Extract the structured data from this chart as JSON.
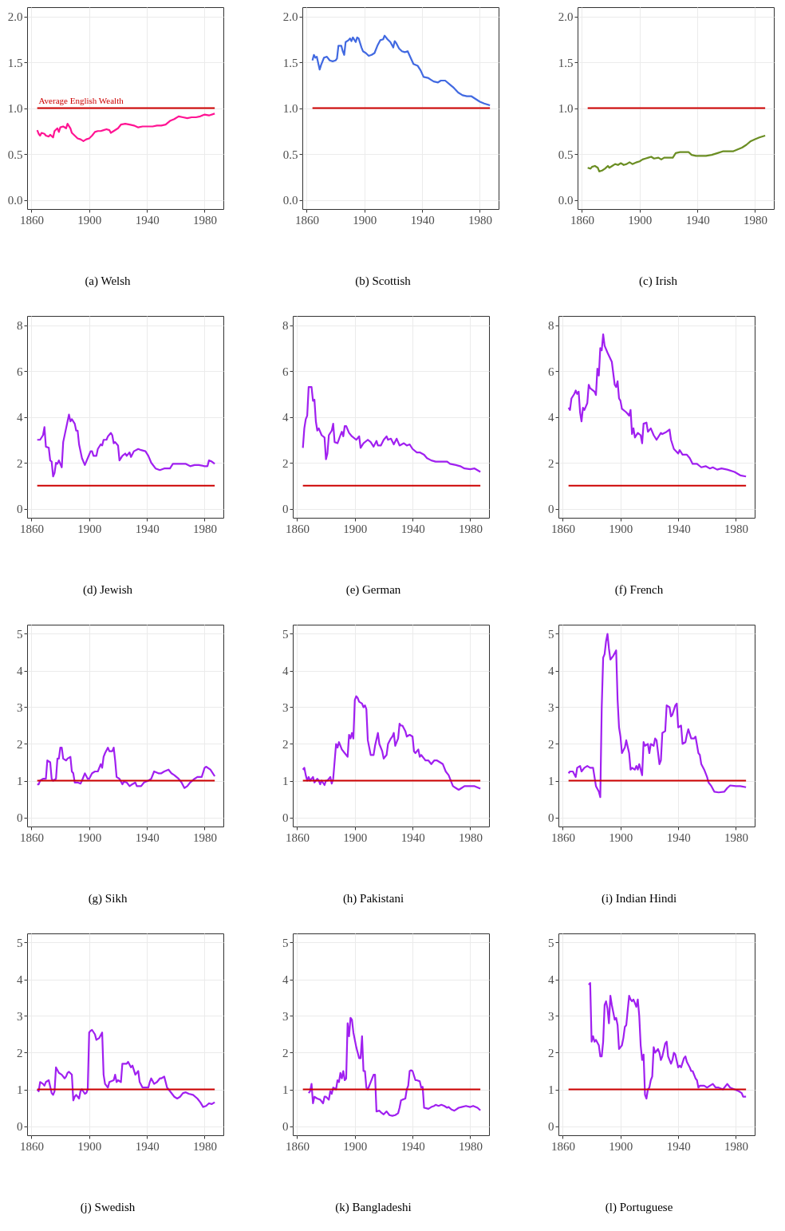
{
  "chart_data": [
    {
      "type": "line",
      "title": "(a) Welsh",
      "xlim": [
        1857,
        1993
      ],
      "xticks": [
        1860,
        1900,
        1940,
        1980
      ],
      "ylim": [
        -0.1,
        2.1
      ],
      "yticks": [
        {
          "value": 0,
          "label": "0.0"
        },
        0.5,
        {
          "value": 1,
          "label": "1.0"
        },
        1.5,
        {
          "value": 2,
          "label": "2.0"
        }
      ],
      "grid": true,
      "annotations": [
        {
          "text": "Average English Wealth",
          "x": 1865,
          "y": 1
        }
      ],
      "series": [
        {
          "color": "#ff1493",
          "x": [
            1864,
            1865,
            1866,
            1867,
            1869,
            1870,
            1872,
            1873,
            1875,
            1876,
            1878,
            1879,
            1880,
            1882,
            1884,
            1885,
            1887,
            1888,
            1890,
            1892,
            1894,
            1896,
            1898,
            1900,
            1902,
            1904,
            1906,
            1908,
            1910,
            1912,
            1914,
            1915,
            1917,
            1920,
            1922,
            1925,
            1928,
            1931,
            1934,
            1937,
            1940,
            1944,
            1947,
            1950,
            1953,
            1956,
            1959,
            1962,
            1965,
            1968,
            1971,
            1974,
            1977,
            1980,
            1983,
            1987
          ],
          "values": [
            0.76,
            0.72,
            0.7,
            0.73,
            0.72,
            0.7,
            0.69,
            0.71,
            0.68,
            0.75,
            0.78,
            0.74,
            0.79,
            0.8,
            0.78,
            0.83,
            0.78,
            0.73,
            0.7,
            0.67,
            0.66,
            0.64,
            0.66,
            0.67,
            0.7,
            0.74,
            0.75,
            0.75,
            0.76,
            0.77,
            0.76,
            0.73,
            0.75,
            0.78,
            0.82,
            0.83,
            0.82,
            0.81,
            0.79,
            0.8,
            0.8,
            0.8,
            0.81,
            0.81,
            0.82,
            0.86,
            0.88,
            0.91,
            0.9,
            0.89,
            0.9,
            0.9,
            0.91,
            0.93,
            0.92,
            0.94
          ]
        },
        {
          "type": "line",
          "color": "#cd0000",
          "x": [
            1864,
            1987
          ],
          "values": [
            1,
            1
          ]
        }
      ]
    },
    {
      "type": "line",
      "title": "(b) Scottish",
      "xlim": [
        1857,
        1993
      ],
      "xticks": [
        1860,
        1900,
        1940,
        1980
      ],
      "ylim": [
        -0.1,
        2.1
      ],
      "yticks": [
        {
          "value": 0,
          "label": "0.0"
        },
        0.5,
        {
          "value": 1,
          "label": "1.0"
        },
        1.5,
        {
          "value": 2,
          "label": "2.0"
        }
      ],
      "grid": true,
      "series": [
        {
          "color": "#4169e1",
          "x": [
            1864,
            1865,
            1866,
            1867,
            1869,
            1870,
            1872,
            1874,
            1876,
            1878,
            1880,
            1881,
            1882,
            1884,
            1885,
            1886,
            1887,
            1889,
            1890,
            1891,
            1892,
            1894,
            1895,
            1896,
            1898,
            1899,
            1901,
            1903,
            1905,
            1907,
            1909,
            1911,
            1913,
            1914,
            1916,
            1918,
            1920,
            1921,
            1922,
            1924,
            1926,
            1928,
            1930,
            1932,
            1934,
            1937,
            1939,
            1941,
            1944,
            1946,
            1948,
            1951,
            1953,
            1956,
            1959,
            1962,
            1965,
            1968,
            1971,
            1974,
            1977,
            1980,
            1983,
            1987
          ],
          "values": [
            1.52,
            1.58,
            1.55,
            1.56,
            1.42,
            1.47,
            1.55,
            1.56,
            1.52,
            1.51,
            1.52,
            1.54,
            1.68,
            1.68,
            1.62,
            1.58,
            1.72,
            1.74,
            1.76,
            1.73,
            1.77,
            1.72,
            1.77,
            1.76,
            1.66,
            1.62,
            1.6,
            1.57,
            1.58,
            1.6,
            1.68,
            1.74,
            1.75,
            1.79,
            1.75,
            1.72,
            1.66,
            1.73,
            1.71,
            1.65,
            1.62,
            1.61,
            1.62,
            1.55,
            1.48,
            1.46,
            1.41,
            1.34,
            1.33,
            1.31,
            1.29,
            1.28,
            1.3,
            1.3,
            1.26,
            1.22,
            1.17,
            1.14,
            1.13,
            1.13,
            1.1,
            1.07,
            1.05,
            1.03
          ]
        },
        {
          "type": "line",
          "color": "#cd0000",
          "x": [
            1864,
            1987
          ],
          "values": [
            1,
            1
          ]
        }
      ]
    },
    {
      "type": "line",
      "title": "(c) Irish",
      "xlim": [
        1857,
        1993
      ],
      "xticks": [
        1860,
        1900,
        1940,
        1980
      ],
      "ylim": [
        -0.1,
        2.1
      ],
      "yticks": [
        {
          "value": 0,
          "label": "0.0"
        },
        0.5,
        {
          "value": 1,
          "label": "1.0"
        },
        1.5,
        {
          "value": 2,
          "label": "2.0"
        }
      ],
      "grid": true,
      "series": [
        {
          "color": "#6b8e23",
          "x": [
            1864,
            1866,
            1867,
            1869,
            1871,
            1872,
            1874,
            1876,
            1878,
            1879,
            1881,
            1883,
            1885,
            1887,
            1889,
            1891,
            1893,
            1895,
            1898,
            1900,
            1902,
            1904,
            1906,
            1908,
            1910,
            1913,
            1915,
            1917,
            1920,
            1923,
            1925,
            1928,
            1931,
            1934,
            1936,
            1939,
            1942,
            1946,
            1950,
            1954,
            1958,
            1962,
            1965,
            1968,
            1971,
            1974,
            1977,
            1980,
            1983,
            1987
          ],
          "values": [
            0.35,
            0.34,
            0.36,
            0.37,
            0.35,
            0.31,
            0.32,
            0.34,
            0.37,
            0.35,
            0.37,
            0.39,
            0.38,
            0.4,
            0.38,
            0.39,
            0.41,
            0.39,
            0.41,
            0.42,
            0.44,
            0.45,
            0.46,
            0.47,
            0.45,
            0.46,
            0.44,
            0.46,
            0.46,
            0.46,
            0.51,
            0.52,
            0.52,
            0.52,
            0.49,
            0.48,
            0.48,
            0.48,
            0.49,
            0.51,
            0.53,
            0.53,
            0.53,
            0.55,
            0.57,
            0.6,
            0.64,
            0.66,
            0.68,
            0.7
          ]
        },
        {
          "type": "line",
          "color": "#cd0000",
          "x": [
            1864,
            1987
          ],
          "values": [
            1,
            1
          ]
        }
      ]
    },
    {
      "type": "line",
      "title": "(d) Jewish",
      "xlim": [
        1857,
        1993
      ],
      "xticks": [
        1860,
        1900,
        1940,
        1980
      ],
      "ylim": [
        -0.4,
        8.4
      ],
      "yticks": [
        0,
        2,
        4,
        6,
        8
      ],
      "grid": true,
      "series": [
        {
          "color": "#a020f0",
          "x": [
            1864,
            1866,
            1868,
            1869,
            1870,
            1872,
            1873,
            1874,
            1875,
            1876,
            1877,
            1878,
            1879,
            1881,
            1882,
            1884,
            1885,
            1886,
            1887,
            1888,
            1890,
            1891,
            1892,
            1893,
            1895,
            1897,
            1899,
            1901,
            1902,
            1903,
            1905,
            1906,
            1908,
            1909,
            1910,
            1912,
            1913,
            1915,
            1916,
            1917,
            1918,
            1920,
            1921,
            1923,
            1925,
            1926,
            1928,
            1929,
            1931,
            1934,
            1936,
            1939,
            1941,
            1943,
            1946,
            1949,
            1952,
            1956,
            1958,
            1962,
            1967,
            1970,
            1973,
            1976,
            1980,
            1982,
            1983,
            1985,
            1987
          ],
          "values": [
            3.0,
            3.0,
            3.2,
            3.55,
            2.7,
            2.65,
            2.1,
            2.05,
            1.4,
            1.55,
            2.0,
            1.95,
            2.1,
            1.8,
            2.9,
            3.5,
            3.8,
            4.1,
            3.8,
            3.9,
            3.7,
            3.4,
            3.4,
            2.8,
            2.2,
            1.9,
            2.2,
            2.5,
            2.5,
            2.3,
            2.3,
            2.6,
            2.8,
            2.75,
            3.0,
            3.0,
            3.15,
            3.3,
            3.2,
            2.85,
            2.9,
            2.75,
            2.1,
            2.3,
            2.4,
            2.3,
            2.45,
            2.25,
            2.5,
            2.6,
            2.55,
            2.5,
            2.3,
            2.0,
            1.75,
            1.68,
            1.75,
            1.75,
            1.95,
            1.95,
            1.95,
            1.85,
            1.9,
            1.9,
            1.85,
            1.85,
            2.1,
            2.05,
            1.95
          ]
        },
        {
          "type": "line",
          "color": "#cd0000",
          "x": [
            1864,
            1987
          ],
          "values": [
            1,
            1
          ]
        }
      ]
    },
    {
      "type": "line",
      "title": "(e) German",
      "xlim": [
        1857,
        1993
      ],
      "xticks": [
        1860,
        1900,
        1940,
        1980
      ],
      "ylim": [
        -0.4,
        8.4
      ],
      "yticks": [
        0,
        2,
        4,
        6,
        8
      ],
      "grid": true,
      "series": [
        {
          "color": "#a020f0",
          "x": [
            1864,
            1865,
            1866,
            1867,
            1868,
            1870,
            1871,
            1872,
            1873,
            1874,
            1875,
            1877,
            1879,
            1880,
            1881,
            1882,
            1884,
            1885,
            1886,
            1888,
            1890,
            1891,
            1892,
            1893,
            1894,
            1896,
            1898,
            1901,
            1903,
            1904,
            1906,
            1909,
            1911,
            1913,
            1915,
            1916,
            1918,
            1920,
            1922,
            1923,
            1925,
            1927,
            1929,
            1931,
            1934,
            1936,
            1938,
            1940,
            1943,
            1945,
            1948,
            1950,
            1953,
            1956,
            1960,
            1964,
            1966,
            1970,
            1973,
            1976,
            1980,
            1983,
            1987
          ],
          "values": [
            2.65,
            3.5,
            3.9,
            4.05,
            5.3,
            5.3,
            4.7,
            4.75,
            3.8,
            3.4,
            3.5,
            3.2,
            3.1,
            2.15,
            2.4,
            3.2,
            3.4,
            3.7,
            2.9,
            2.85,
            3.2,
            3.35,
            3.15,
            3.6,
            3.6,
            3.3,
            3.15,
            3.0,
            3.15,
            2.65,
            2.85,
            3.0,
            2.9,
            2.7,
            2.95,
            2.75,
            2.75,
            3.0,
            3.15,
            3.0,
            3.05,
            2.8,
            3.05,
            2.75,
            2.85,
            2.75,
            2.8,
            2.6,
            2.45,
            2.45,
            2.35,
            2.2,
            2.1,
            2.05,
            2.05,
            2.05,
            1.95,
            1.9,
            1.85,
            1.75,
            1.72,
            1.75,
            1.6
          ]
        },
        {
          "type": "line",
          "color": "#cd0000",
          "x": [
            1864,
            1987
          ],
          "values": [
            1,
            1
          ]
        }
      ]
    },
    {
      "type": "line",
      "title": "(f) French",
      "xlim": [
        1857,
        1993
      ],
      "xticks": [
        1860,
        1900,
        1940,
        1980
      ],
      "ylim": [
        -0.4,
        8.4
      ],
      "yticks": [
        0,
        2,
        4,
        6,
        8
      ],
      "grid": true,
      "series": [
        {
          "color": "#a020f0",
          "x": [
            1864,
            1865,
            1866,
            1868,
            1869,
            1870,
            1871,
            1872,
            1873,
            1874,
            1875,
            1877,
            1878,
            1879,
            1882,
            1883,
            1884,
            1885,
            1886,
            1887,
            1888,
            1889,
            1891,
            1894,
            1896,
            1897,
            1898,
            1899,
            1900,
            1901,
            1904,
            1906,
            1907,
            1908,
            1909,
            1910,
            1912,
            1914,
            1915,
            1916,
            1918,
            1919,
            1921,
            1923,
            1925,
            1928,
            1929,
            1932,
            1934,
            1935,
            1937,
            1940,
            1941,
            1943,
            1946,
            1948,
            1950,
            1953,
            1956,
            1959,
            1962,
            1964,
            1967,
            1970,
            1974,
            1979,
            1983,
            1987
          ],
          "values": [
            4.4,
            4.3,
            4.8,
            5.0,
            5.15,
            5.0,
            5.1,
            4.2,
            3.8,
            4.4,
            4.3,
            4.6,
            5.4,
            5.25,
            5.1,
            4.95,
            6.1,
            5.8,
            7.0,
            6.9,
            7.6,
            7.1,
            6.8,
            6.4,
            5.4,
            5.3,
            5.55,
            4.8,
            4.7,
            4.35,
            4.2,
            4.05,
            4.3,
            3.25,
            3.5,
            3.1,
            3.3,
            3.2,
            2.85,
            3.7,
            3.75,
            3.35,
            3.5,
            3.2,
            3.0,
            3.3,
            3.25,
            3.35,
            3.45,
            3.0,
            2.6,
            2.4,
            2.55,
            2.35,
            2.35,
            2.2,
            1.95,
            1.95,
            1.8,
            1.85,
            1.75,
            1.8,
            1.7,
            1.75,
            1.7,
            1.6,
            1.45,
            1.4
          ]
        },
        {
          "type": "line",
          "color": "#cd0000",
          "x": [
            1864,
            1987
          ],
          "values": [
            1,
            1
          ]
        }
      ]
    },
    {
      "type": "line",
      "title": "(g) Sikh",
      "xlim": [
        1857,
        1993
      ],
      "xticks": [
        1860,
        1900,
        1940,
        1980
      ],
      "ylim": [
        -0.25,
        5.25
      ],
      "yticks": [
        0,
        1,
        2,
        3,
        4,
        5
      ],
      "grid": true,
      "series": [
        {
          "color": "#a020f0",
          "x": [
            1864,
            1865,
            1866,
            1868,
            1870,
            1871,
            1873,
            1874,
            1875,
            1877,
            1878,
            1879,
            1880,
            1881,
            1882,
            1884,
            1885,
            1887,
            1888,
            1889,
            1890,
            1892,
            1894,
            1895,
            1897,
            1899,
            1900,
            1902,
            1904,
            1906,
            1908,
            1909,
            1910,
            1911,
            1913,
            1914,
            1916,
            1917,
            1918,
            1919,
            1921,
            1923,
            1924,
            1926,
            1928,
            1929,
            1932,
            1933,
            1936,
            1938,
            1941,
            1943,
            1945,
            1948,
            1950,
            1952,
            1955,
            1957,
            1959,
            1962,
            1964,
            1966,
            1968,
            1970,
            1973,
            1975,
            1978,
            1980,
            1981,
            1984,
            1987
          ],
          "values": [
            0.9,
            0.9,
            1.0,
            1.05,
            1.05,
            1.55,
            1.5,
            1.05,
            1.0,
            1.05,
            1.6,
            1.6,
            1.9,
            1.9,
            1.6,
            1.55,
            1.6,
            1.65,
            1.25,
            1.2,
            0.95,
            0.95,
            0.92,
            1.0,
            1.2,
            1.05,
            1.05,
            1.2,
            1.25,
            1.25,
            1.45,
            1.35,
            1.65,
            1.75,
            1.9,
            1.8,
            1.8,
            1.9,
            1.55,
            1.1,
            1.05,
            0.9,
            0.97,
            0.95,
            0.85,
            0.88,
            0.95,
            0.85,
            0.85,
            0.95,
            1.0,
            1.05,
            1.25,
            1.2,
            1.2,
            1.25,
            1.3,
            1.2,
            1.15,
            1.05,
            0.95,
            0.8,
            0.85,
            0.95,
            1.05,
            1.1,
            1.1,
            1.35,
            1.38,
            1.3,
            1.12
          ]
        },
        {
          "type": "line",
          "color": "#cd0000",
          "x": [
            1864,
            1987
          ],
          "values": [
            1,
            1
          ]
        }
      ]
    },
    {
      "type": "line",
      "title": "(h) Pakistani",
      "xlim": [
        1857,
        1993
      ],
      "xticks": [
        1860,
        1900,
        1940,
        1980
      ],
      "ylim": [
        -0.25,
        5.25
      ],
      "yticks": [
        0,
        1,
        2,
        3,
        4,
        5
      ],
      "grid": true,
      "series": [
        {
          "color": "#a020f0",
          "x": [
            1864,
            1865,
            1866,
            1867,
            1868,
            1869,
            1871,
            1872,
            1874,
            1875,
            1876,
            1877,
            1879,
            1880,
            1881,
            1883,
            1884,
            1885,
            1887,
            1888,
            1889,
            1891,
            1893,
            1895,
            1896,
            1897,
            1898,
            1899,
            1900,
            1901,
            1902,
            1903,
            1905,
            1906,
            1907,
            1908,
            1909,
            1911,
            1913,
            1914,
            1916,
            1917,
            1919,
            1920,
            1922,
            1923,
            1925,
            1926,
            1927,
            1928,
            1929,
            1930,
            1931,
            1932,
            1933,
            1935,
            1936,
            1938,
            1940,
            1941,
            1942,
            1944,
            1945,
            1946,
            1948,
            1949,
            1951,
            1953,
            1955,
            1957,
            1959,
            1961,
            1963,
            1965,
            1967,
            1968,
            1970,
            1972,
            1974,
            1976,
            1980,
            1983,
            1987
          ],
          "values": [
            1.3,
            1.35,
            1.15,
            1.0,
            1.1,
            1.0,
            1.1,
            0.95,
            1.05,
            1.0,
            0.9,
            1.0,
            0.88,
            1.0,
            1.0,
            1.1,
            0.92,
            1.05,
            2.0,
            1.9,
            2.05,
            1.85,
            1.75,
            1.65,
            2.25,
            2.15,
            2.3,
            2.15,
            3.2,
            3.3,
            3.25,
            3.15,
            3.1,
            3.0,
            3.05,
            2.95,
            2.1,
            1.7,
            1.7,
            1.95,
            2.3,
            2.0,
            1.8,
            1.6,
            1.7,
            2.0,
            2.15,
            2.2,
            2.3,
            1.95,
            2.05,
            2.15,
            2.55,
            2.5,
            2.5,
            2.35,
            2.2,
            2.25,
            2.2,
            1.8,
            1.75,
            1.85,
            1.65,
            1.7,
            1.6,
            1.55,
            1.55,
            1.45,
            1.55,
            1.55,
            1.5,
            1.45,
            1.25,
            1.15,
            0.95,
            0.85,
            0.8,
            0.75,
            0.8,
            0.85,
            0.85,
            0.85,
            0.78
          ]
        },
        {
          "type": "line",
          "color": "#cd0000",
          "x": [
            1864,
            1987
          ],
          "values": [
            1,
            1
          ]
        }
      ]
    },
    {
      "type": "line",
      "title": "(i) Indian Hindi",
      "xlim": [
        1857,
        1993
      ],
      "xticks": [
        1860,
        1900,
        1940,
        1980
      ],
      "ylim": [
        -0.25,
        5.25
      ],
      "yticks": [
        0,
        1,
        2,
        3,
        4,
        5
      ],
      "grid": true,
      "series": [
        {
          "color": "#a020f0",
          "x": [
            1864,
            1865,
            1867,
            1869,
            1870,
            1872,
            1873,
            1875,
            1877,
            1879,
            1881,
            1882,
            1883,
            1885,
            1886,
            1887,
            1888,
            1889,
            1890,
            1891,
            1892,
            1893,
            1895,
            1897,
            1898,
            1899,
            1900,
            1901,
            1903,
            1904,
            1906,
            1907,
            1908,
            1910,
            1911,
            1912,
            1913,
            1915,
            1916,
            1917,
            1919,
            1920,
            1921,
            1923,
            1924,
            1925,
            1927,
            1928,
            1929,
            1931,
            1932,
            1934,
            1935,
            1936,
            1938,
            1939,
            1940,
            1942,
            1943,
            1945,
            1946,
            1947,
            1949,
            1951,
            1952,
            1954,
            1955,
            1956,
            1958,
            1960,
            1961,
            1963,
            1965,
            1968,
            1972,
            1974,
            1976,
            1980,
            1983,
            1987
          ],
          "values": [
            1.2,
            1.25,
            1.25,
            1.1,
            1.35,
            1.4,
            1.25,
            1.35,
            1.4,
            1.35,
            1.35,
            1.1,
            0.85,
            0.7,
            0.55,
            3.0,
            4.35,
            4.45,
            4.8,
            5.0,
            4.6,
            4.3,
            4.4,
            4.55,
            3.2,
            2.45,
            2.2,
            1.75,
            1.9,
            2.1,
            1.75,
            1.3,
            1.35,
            1.3,
            1.4,
            1.3,
            1.45,
            1.15,
            2.05,
            1.95,
            2.0,
            1.75,
            2.0,
            1.95,
            2.15,
            2.1,
            1.45,
            1.55,
            2.3,
            2.35,
            3.05,
            3.0,
            2.75,
            2.8,
            3.05,
            3.1,
            2.45,
            2.5,
            2.0,
            2.05,
            2.25,
            2.4,
            2.15,
            2.15,
            2.2,
            1.75,
            1.7,
            1.45,
            1.3,
            1.1,
            0.95,
            0.85,
            0.7,
            0.68,
            0.7,
            0.8,
            0.87,
            0.85,
            0.85,
            0.82
          ]
        },
        {
          "type": "line",
          "color": "#cd0000",
          "x": [
            1864,
            1987
          ],
          "values": [
            1,
            1
          ]
        }
      ]
    },
    {
      "type": "line",
      "title": "(j) Swedish",
      "xlim": [
        1857,
        1993
      ],
      "xticks": [
        1860,
        1900,
        1940,
        1980
      ],
      "ylim": [
        -0.25,
        5.25
      ],
      "yticks": [
        0,
        1,
        2,
        3,
        4,
        5
      ],
      "grid": true,
      "series": [
        {
          "color": "#a020f0",
          "x": [
            1864,
            1865,
            1866,
            1868,
            1869,
            1870,
            1872,
            1874,
            1875,
            1876,
            1877,
            1879,
            1881,
            1883,
            1884,
            1885,
            1886,
            1888,
            1889,
            1890,
            1891,
            1893,
            1894,
            1895,
            1897,
            1898,
            1899,
            1900,
            1901,
            1902,
            1904,
            1905,
            1907,
            1909,
            1910,
            1911,
            1913,
            1914,
            1917,
            1918,
            1919,
            1920,
            1922,
            1923,
            1926,
            1927,
            1929,
            1930,
            1932,
            1934,
            1935,
            1937,
            1939,
            1941,
            1942,
            1943,
            1945,
            1947,
            1949,
            1950,
            1952,
            1954,
            1956,
            1959,
            1961,
            1963,
            1965,
            1967,
            1969,
            1972,
            1975,
            1977,
            1979,
            1981,
            1983,
            1985,
            1987
          ],
          "values": [
            1.0,
            0.95,
            1.2,
            1.15,
            1.1,
            1.2,
            1.25,
            0.9,
            0.85,
            0.95,
            1.6,
            1.45,
            1.4,
            1.3,
            1.35,
            1.45,
            1.48,
            1.4,
            0.7,
            0.8,
            0.85,
            0.75,
            0.95,
            1.0,
            0.88,
            0.9,
            1.0,
            2.55,
            2.6,
            2.62,
            2.5,
            2.35,
            2.4,
            2.55,
            1.4,
            1.15,
            1.05,
            1.2,
            1.25,
            1.4,
            1.2,
            1.25,
            1.2,
            1.7,
            1.7,
            1.75,
            1.6,
            1.65,
            1.4,
            1.5,
            1.2,
            1.05,
            1.05,
            1.05,
            1.2,
            1.3,
            1.15,
            1.2,
            1.3,
            1.3,
            1.35,
            1.05,
            0.95,
            0.8,
            0.75,
            0.8,
            0.9,
            0.92,
            0.88,
            0.85,
            0.75,
            0.65,
            0.52,
            0.55,
            0.62,
            0.6,
            0.65
          ]
        },
        {
          "type": "line",
          "color": "#cd0000",
          "x": [
            1864,
            1987
          ],
          "values": [
            1,
            1
          ]
        }
      ]
    },
    {
      "type": "line",
      "title": "(k) Bangladeshi",
      "xlim": [
        1857,
        1993
      ],
      "xticks": [
        1860,
        1900,
        1940,
        1980
      ],
      "ylim": [
        -0.25,
        5.25
      ],
      "yticks": [
        0,
        1,
        2,
        3,
        4,
        5
      ],
      "grid": true,
      "series": [
        {
          "color": "#a020f0",
          "x": [
            1868,
            1869,
            1870,
            1871,
            1872,
            1874,
            1876,
            1878,
            1879,
            1880,
            1882,
            1883,
            1884,
            1885,
            1887,
            1888,
            1889,
            1890,
            1891,
            1892,
            1893,
            1894,
            1895,
            1896,
            1897,
            1898,
            1899,
            1901,
            1902,
            1903,
            1904,
            1905,
            1906,
            1907,
            1908,
            1909,
            1911,
            1913,
            1914,
            1915,
            1917,
            1918,
            1920,
            1922,
            1924,
            1926,
            1928,
            1930,
            1931,
            1932,
            1933,
            1935,
            1936,
            1937,
            1938,
            1939,
            1940,
            1942,
            1943,
            1945,
            1946,
            1947,
            1948,
            1950,
            1951,
            1953,
            1955,
            1956,
            1958,
            1960,
            1962,
            1964,
            1965,
            1967,
            1969,
            1972,
            1974,
            1977,
            1980,
            1982,
            1985,
            1987
          ],
          "values": [
            0.9,
            0.95,
            1.15,
            0.62,
            0.8,
            0.75,
            0.72,
            0.62,
            0.8,
            0.8,
            0.72,
            0.95,
            0.88,
            1.05,
            1.0,
            1.25,
            1.2,
            1.45,
            1.3,
            1.5,
            1.25,
            1.3,
            2.8,
            2.45,
            2.95,
            2.9,
            2.55,
            2.15,
            2.0,
            1.85,
            1.85,
            2.45,
            1.5,
            1.5,
            1.05,
            1.0,
            1.2,
            1.4,
            1.4,
            0.4,
            0.42,
            0.38,
            0.32,
            0.4,
            0.3,
            0.28,
            0.3,
            0.35,
            0.5,
            0.7,
            0.72,
            0.75,
            1.0,
            1.1,
            1.5,
            1.52,
            1.5,
            1.25,
            1.25,
            1.22,
            1.05,
            1.07,
            0.5,
            0.48,
            0.47,
            0.52,
            0.55,
            0.58,
            0.55,
            0.58,
            0.55,
            0.5,
            0.52,
            0.45,
            0.42,
            0.5,
            0.52,
            0.55,
            0.52,
            0.55,
            0.5,
            0.43
          ]
        },
        {
          "type": "line",
          "color": "#cd0000",
          "x": [
            1864,
            1987
          ],
          "values": [
            1,
            1
          ]
        }
      ]
    },
    {
      "type": "line",
      "title": "(l) Portuguese",
      "xlim": [
        1857,
        1993
      ],
      "xticks": [
        1860,
        1900,
        1940,
        1980
      ],
      "ylim": [
        -0.25,
        5.25
      ],
      "yticks": [
        0,
        1,
        2,
        3,
        4,
        5
      ],
      "grid": true,
      "series": [
        {
          "color": "#a020f0",
          "x": [
            1878,
            1879,
            1880,
            1881,
            1882,
            1883,
            1885,
            1886,
            1887,
            1888,
            1889,
            1890,
            1891,
            1892,
            1893,
            1894,
            1896,
            1897,
            1898,
            1899,
            1900,
            1901,
            1902,
            1903,
            1904,
            1906,
            1907,
            1908,
            1909,
            1910,
            1911,
            1912,
            1913,
            1914,
            1915,
            1916,
            1917,
            1918,
            1919,
            1920,
            1921,
            1922,
            1923,
            1924,
            1926,
            1927,
            1928,
            1929,
            1931,
            1932,
            1933,
            1935,
            1936,
            1937,
            1938,
            1940,
            1941,
            1942,
            1944,
            1945,
            1946,
            1948,
            1949,
            1950,
            1952,
            1953,
            1954,
            1955,
            1958,
            1960,
            1962,
            1964,
            1966,
            1968,
            1971,
            1974,
            1976,
            1979,
            1982,
            1984,
            1985,
            1987
          ],
          "values": [
            3.85,
            3.9,
            2.3,
            2.45,
            2.3,
            2.35,
            2.2,
            1.9,
            1.9,
            2.3,
            3.3,
            3.4,
            3.2,
            2.8,
            3.55,
            3.3,
            2.9,
            2.95,
            2.75,
            2.1,
            2.15,
            2.2,
            2.4,
            2.7,
            2.75,
            3.55,
            3.45,
            3.4,
            3.45,
            3.35,
            3.25,
            3.45,
            3.0,
            2.2,
            1.8,
            1.95,
            0.85,
            0.75,
            1.0,
            1.05,
            1.25,
            1.35,
            2.15,
            2.0,
            2.1,
            2.0,
            1.8,
            1.9,
            2.25,
            2.3,
            1.9,
            1.7,
            1.8,
            2.0,
            1.95,
            1.6,
            1.65,
            1.6,
            1.85,
            1.9,
            1.75,
            1.6,
            1.5,
            1.5,
            1.3,
            1.25,
            1.05,
            1.1,
            1.1,
            1.05,
            1.1,
            1.15,
            1.05,
            1.05,
            1.0,
            1.15,
            1.05,
            1.0,
            0.95,
            0.9,
            0.8,
            0.8
          ]
        },
        {
          "type": "line",
          "color": "#cd0000",
          "x": [
            1864,
            1987
          ],
          "values": [
            1,
            1
          ]
        }
      ]
    }
  ]
}
